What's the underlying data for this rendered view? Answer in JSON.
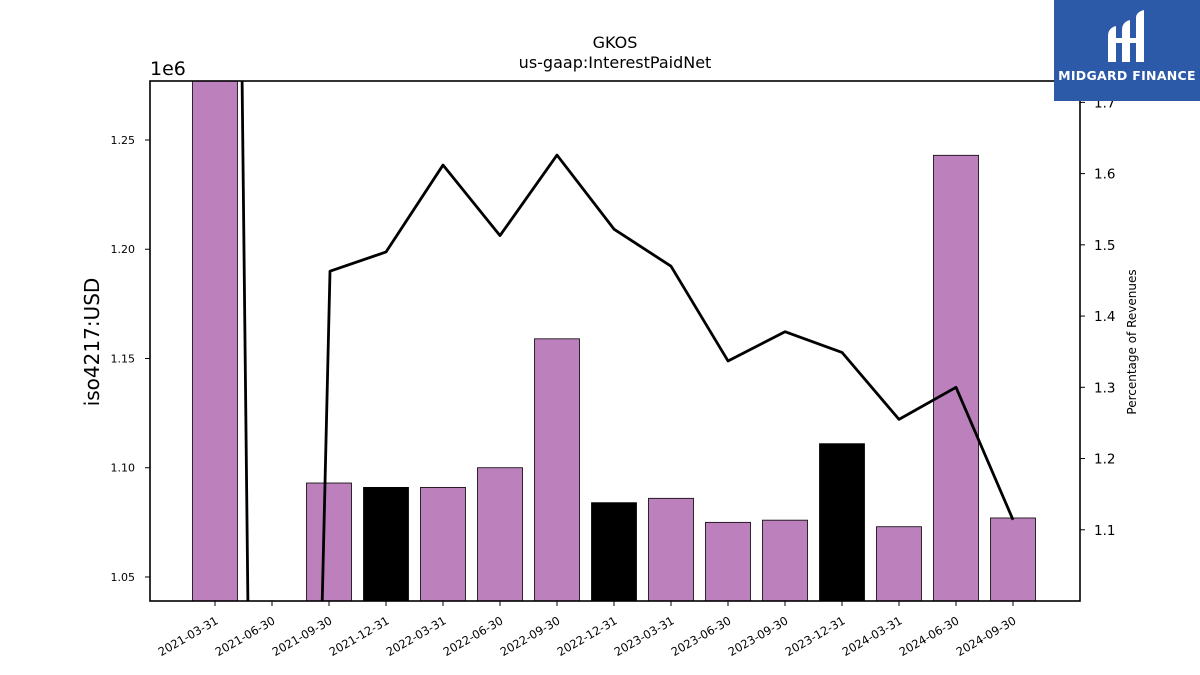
{
  "chart_data": {
    "type": "bar",
    "title": "GKOS",
    "subtitle": "us-gaap:InterestPaidNet",
    "ylabel": "iso4217:USD",
    "y2label": "Percentage of Revenues",
    "y_offset_label": "1e6",
    "categories": [
      "2021-03-31",
      "2021-06-30",
      "2021-09-30",
      "2021-12-31",
      "2022-03-31",
      "2022-06-30",
      "2022-09-30",
      "2022-12-31",
      "2023-03-31",
      "2023-06-30",
      "2023-09-30",
      "2023-12-31",
      "2024-03-31",
      "2024-06-30",
      "2024-09-30"
    ],
    "values": [
      1280000,
      null,
      1093000,
      1091000,
      1091000,
      1100000,
      1159000,
      1084000,
      1086000,
      1075000,
      1076000,
      1111000,
      1073000,
      1243000,
      1077000
    ],
    "bar_colors": [
      "#bc80bd",
      "#bc80bd",
      "#bc80bd",
      "#000000",
      "#bc80bd",
      "#bc80bd",
      "#bc80bd",
      "#000000",
      "#bc80bd",
      "#bc80bd",
      "#bc80bd",
      "#000000",
      "#bc80bd",
      "#bc80bd",
      "#bc80bd"
    ],
    "ylim": [
      1039000,
      1277000
    ],
    "yticks": [
      1.05,
      1.1,
      1.15,
      1.2,
      1.25
    ],
    "line_series": {
      "name": "Percentage of Revenues",
      "values": [
        1.9,
        0.9,
        1.463,
        1.49,
        1.612,
        1.513,
        1.626,
        1.522,
        1.47,
        1.337,
        1.378,
        1.349,
        1.255,
        1.3,
        1.114
      ],
      "color": "#000000"
    },
    "y2lim": [
      1.0,
      1.73
    ],
    "y2ticks": [
      1.1,
      1.2,
      1.3,
      1.4,
      1.5,
      1.6,
      1.7
    ],
    "grid": false,
    "legend": "none"
  },
  "logo": {
    "text": "MIDGARD FINANCE",
    "color": "#2c5aa8"
  }
}
